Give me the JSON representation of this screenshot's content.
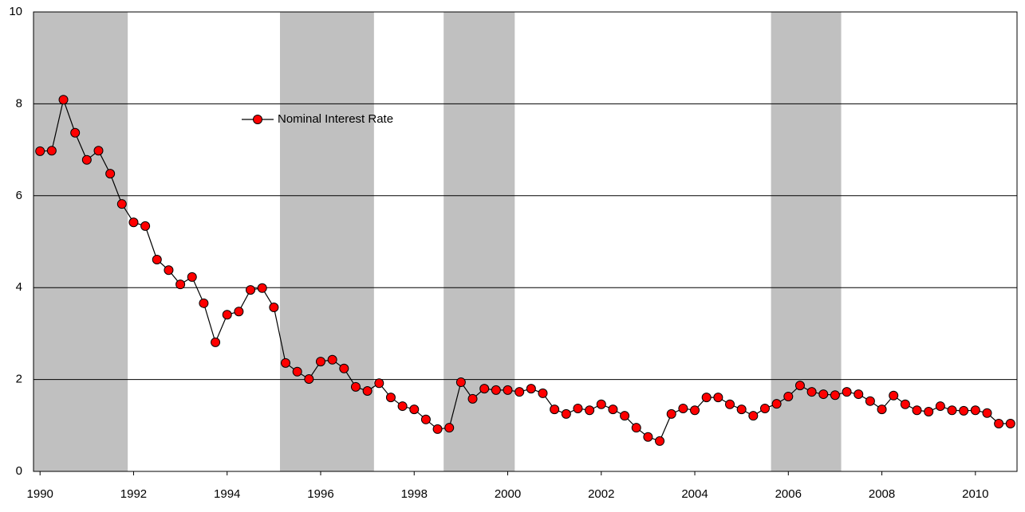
{
  "chart_data": {
    "type": "line",
    "x": [
      1990,
      1990.25,
      1990.5,
      1990.75,
      1991,
      1991.25,
      1991.5,
      1991.75,
      1992,
      1992.25,
      1992.5,
      1992.75,
      1993,
      1993.25,
      1993.5,
      1993.75,
      1994,
      1994.25,
      1994.5,
      1994.75,
      1995,
      1995.25,
      1995.5,
      1995.75,
      1996,
      1996.25,
      1996.5,
      1996.75,
      1997,
      1997.25,
      1997.5,
      1997.75,
      1998,
      1998.25,
      1998.5,
      1998.75,
      1999,
      1999.25,
      1999.5,
      1999.75,
      2000,
      2000.25,
      2000.5,
      2000.75,
      2001,
      2001.25,
      2001.5,
      2001.75,
      2002,
      2002.25,
      2002.5,
      2002.75,
      2003,
      2003.25,
      2003.5,
      2003.75,
      2004,
      2004.25,
      2004.5,
      2004.75,
      2005,
      2005.25,
      2005.5,
      2005.75,
      2006,
      2006.25,
      2006.5,
      2006.75,
      2007,
      2007.25,
      2007.5,
      2007.75,
      2008,
      2008.25,
      2008.5,
      2008.75,
      2009,
      2009.25,
      2009.5,
      2009.75,
      2010,
      2010.25,
      2010.5,
      2010.75
    ],
    "series": [
      {
        "name": "Nominal Interest Rate",
        "color": "#ff0000",
        "values": [
          6.97,
          6.98,
          8.09,
          7.37,
          6.78,
          6.98,
          6.48,
          5.82,
          5.42,
          5.34,
          4.61,
          4.38,
          4.07,
          4.23,
          3.66,
          2.81,
          3.41,
          3.48,
          3.95,
          3.99,
          3.57,
          2.36,
          2.17,
          2.01,
          2.39,
          2.43,
          2.24,
          1.84,
          1.75,
          1.92,
          1.61,
          1.42,
          1.35,
          1.13,
          0.92,
          0.95,
          1.94,
          1.58,
          1.8,
          1.77,
          1.77,
          1.73,
          1.8,
          1.7,
          1.35,
          1.25,
          1.37,
          1.33,
          1.46,
          1.35,
          1.21,
          0.95,
          0.75,
          0.66,
          1.25,
          1.37,
          1.33,
          1.61,
          1.61,
          1.46,
          1.35,
          1.21,
          1.37,
          1.47,
          1.63,
          1.87,
          1.73,
          1.68,
          1.66,
          1.73,
          1.68,
          1.53,
          1.35,
          1.65,
          1.46,
          1.33,
          1.3,
          1.42,
          1.33,
          1.32,
          1.33,
          1.27,
          1.04,
          1.04
        ]
      }
    ],
    "shaded_regions": [
      [
        1989.86,
        1991.875
      ],
      [
        1995.13,
        1997.14
      ],
      [
        1998.63,
        2000.15
      ],
      [
        2005.63,
        2007.13
      ]
    ],
    "shade_color": "#c0c0c0",
    "xlim": [
      1989.86,
      2010.89
    ],
    "xticks": [
      1990,
      1992,
      1994,
      1996,
      1998,
      2000,
      2002,
      2004,
      2006,
      2008,
      2010
    ],
    "ylim": [
      0,
      10
    ],
    "yticks": [
      0,
      2,
      4,
      6,
      8,
      10
    ],
    "grid": true,
    "legend": "upper left"
  }
}
